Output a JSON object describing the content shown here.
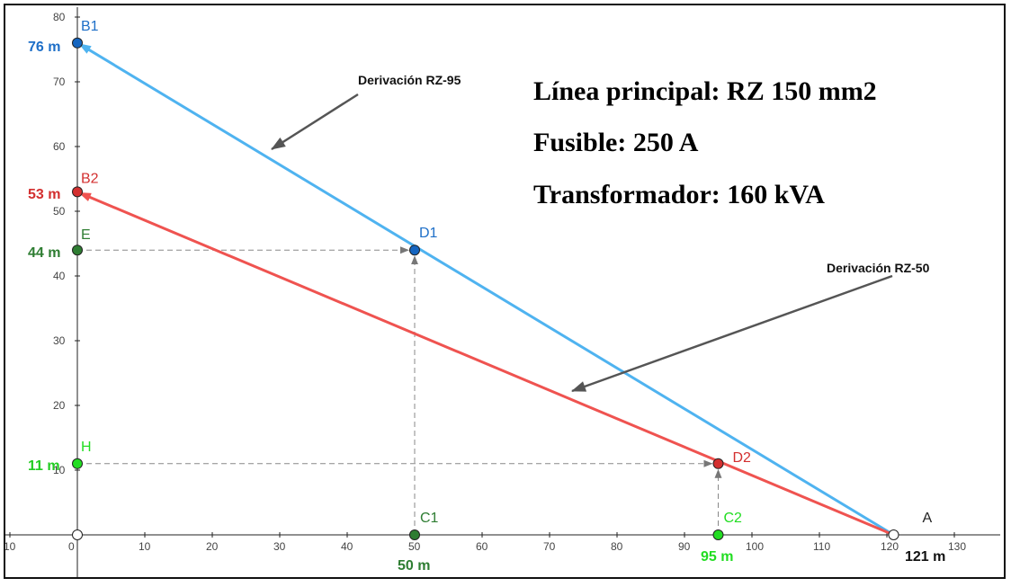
{
  "chart_data": {
    "type": "line",
    "xlim": [
      -10,
      130
    ],
    "ylim": [
      0,
      80
    ],
    "grid": false,
    "x_ticks": [
      "10",
      "0",
      "10",
      "20",
      "30",
      "40",
      "50",
      "60",
      "70",
      "80",
      "90",
      "100",
      "110",
      "120",
      "130"
    ],
    "y_ticks": [
      "10",
      "20",
      "30",
      "40",
      "50",
      "60",
      "70",
      "80"
    ],
    "points": [
      {
        "id": "A",
        "label": "A",
        "x": 121,
        "y": 0,
        "color": "#ffffff",
        "label_color": "#222222"
      },
      {
        "id": "B1",
        "label": "B1",
        "x": 0,
        "y": 76,
        "color": "#1565c0",
        "label_color": "#1e6fc8"
      },
      {
        "id": "B2",
        "label": "B2",
        "x": 0,
        "y": 53,
        "color": "#d32f2f",
        "label_color": "#d32f2f"
      },
      {
        "id": "C1",
        "label": "C1",
        "x": 50,
        "y": 0,
        "color": "#2e7d32",
        "label_color": "#2e7d32"
      },
      {
        "id": "C2",
        "label": "C2",
        "x": 95,
        "y": 0,
        "color": "#22dd22",
        "label_color": "#22dd22"
      },
      {
        "id": "D1",
        "label": "D1",
        "x": 50,
        "y": 44,
        "color": "#1565c0",
        "label_color": "#1e6fc8"
      },
      {
        "id": "D2",
        "label": "D2",
        "x": 95,
        "y": 11,
        "color": "#d32f2f",
        "label_color": "#d32f2f"
      },
      {
        "id": "E",
        "label": "E",
        "x": 0,
        "y": 44,
        "color": "#2e7d32",
        "label_color": "#2e7d32"
      },
      {
        "id": "H",
        "label": "H",
        "x": 0,
        "y": 11,
        "color": "#22dd22",
        "label_color": "#22dd22"
      },
      {
        "id": "O",
        "label": "",
        "x": 0,
        "y": 0,
        "color": "#ffffff",
        "label_color": "#222222"
      }
    ],
    "series": [
      {
        "from": "A",
        "to": "B1",
        "color": "#4fb3f0"
      },
      {
        "from": "A",
        "to": "B2",
        "color": "#ef5350"
      }
    ],
    "dashed": [
      {
        "from": "C1",
        "to": "D1",
        "arrow": true
      },
      {
        "from": "E",
        "to": "D1",
        "arrow": true
      },
      {
        "from": "C2",
        "to": "D2",
        "arrow": true
      },
      {
        "from": "H",
        "to": "D2",
        "arrow": true
      }
    ],
    "value_labels": [
      {
        "text": "76 m",
        "color": "#1e6fc8"
      },
      {
        "text": "53 m",
        "color": "#d32f2f"
      },
      {
        "text": "44 m",
        "color": "#2e7d32"
      },
      {
        "text": "11 m",
        "color": "#22cc22"
      },
      {
        "text": "50 m",
        "color": "#2e7d32"
      },
      {
        "text": "95 m",
        "color": "#22dd22"
      },
      {
        "text": "121 m",
        "color": "#111111"
      }
    ],
    "annotations": [
      {
        "text": "Derivación RZ-95"
      },
      {
        "text": "Derivación RZ-50"
      }
    ]
  },
  "info": {
    "line1": "Línea principal: RZ 150 mm2",
    "line2": "Fusible: 250 A",
    "line3": "Transformador: 160 kVA"
  }
}
